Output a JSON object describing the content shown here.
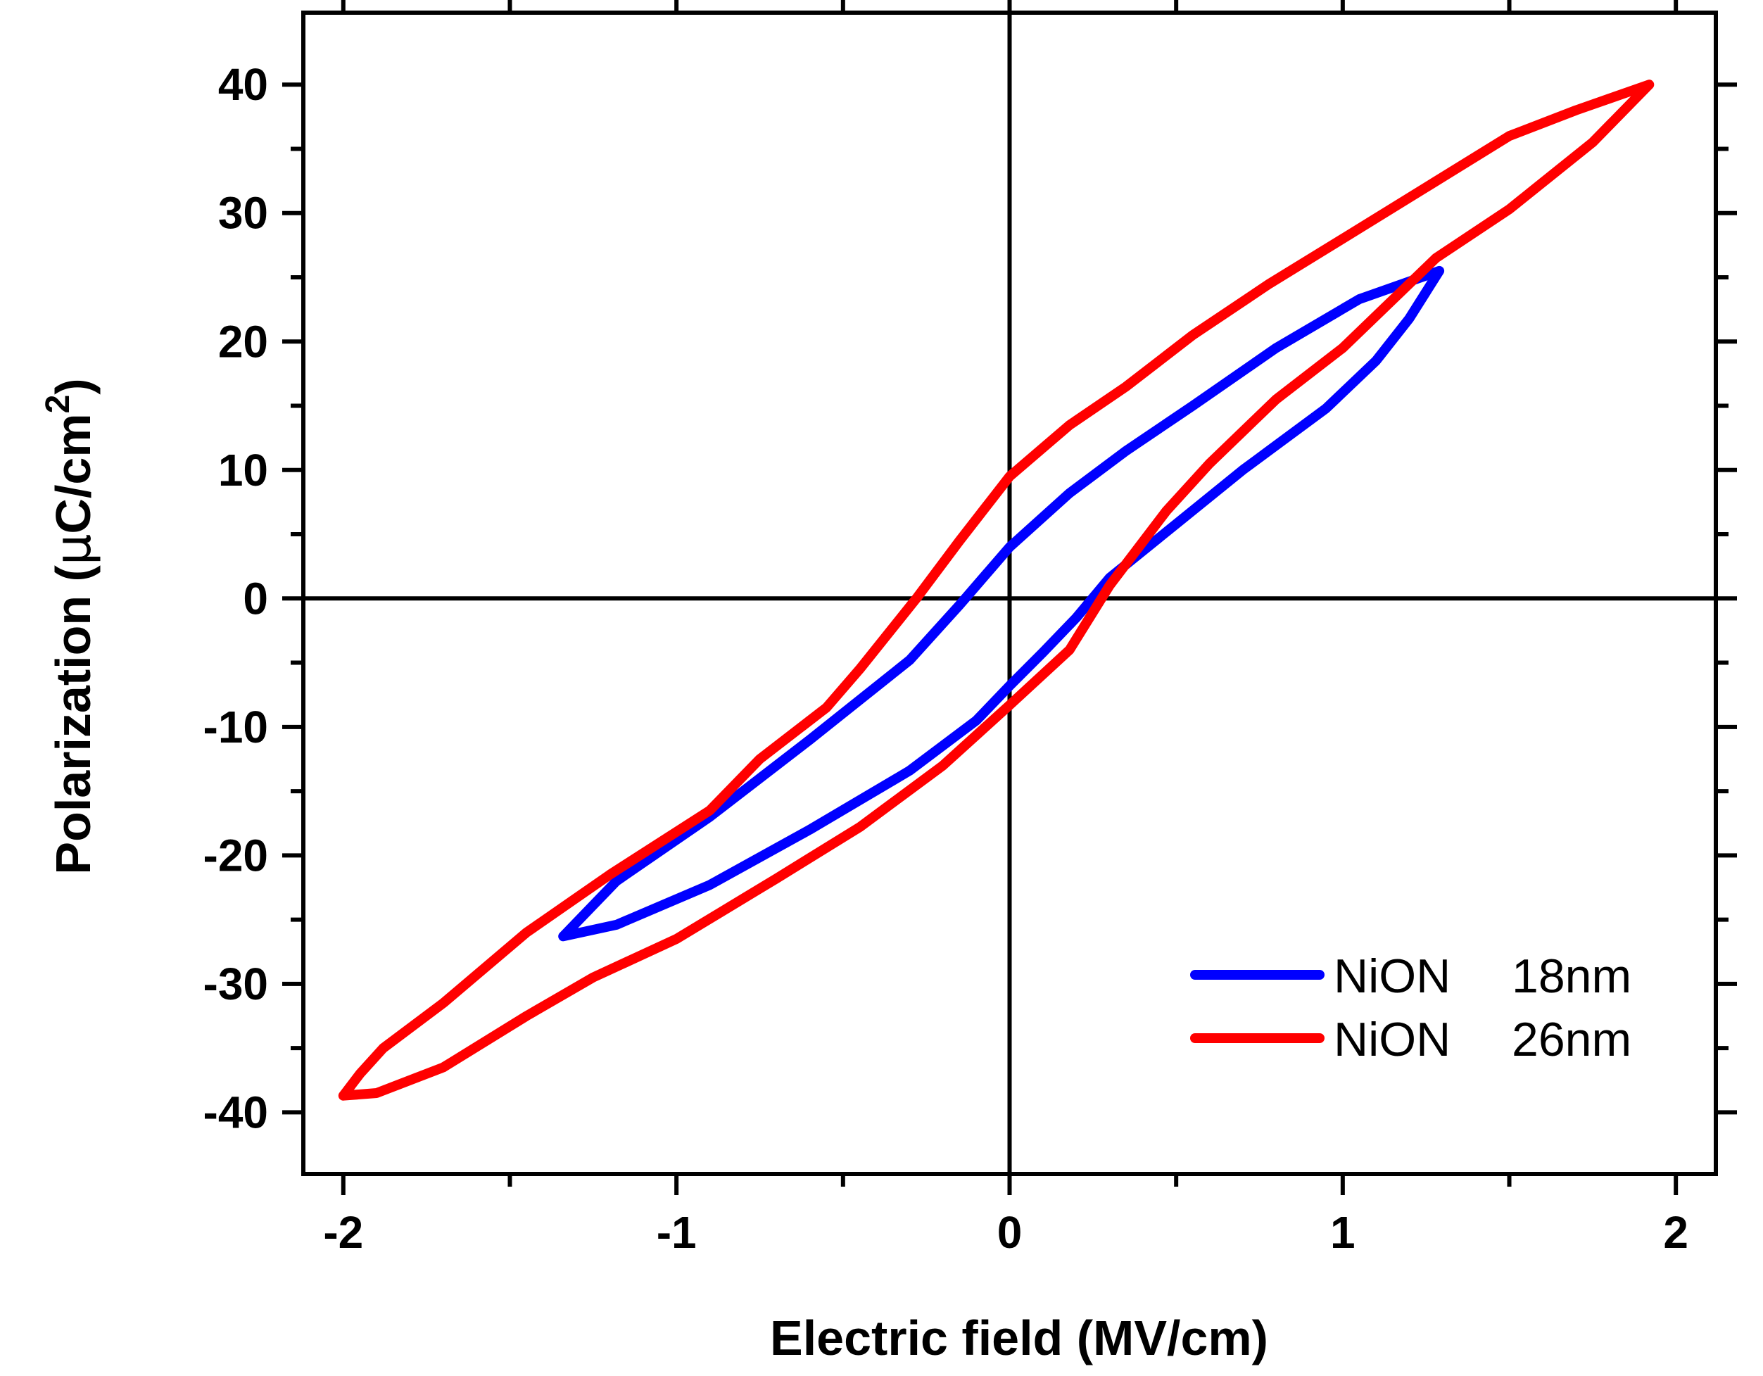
{
  "chart_data": {
    "type": "line",
    "title": "",
    "xlabel": "Electric field (MV/cm)",
    "ylabel_main": "Polarization (",
    "ylabel_mu": "μ",
    "ylabel_unit": "C/cm",
    "ylabel_sup": "2",
    "ylabel_close": ")",
    "xlim": [
      -2.12,
      2.12
    ],
    "ylim": [
      -44.8,
      45.6
    ],
    "xticks": [
      -2,
      -1,
      0,
      1,
      2
    ],
    "xtick_labels": [
      "-2",
      "-1",
      "0",
      "1",
      "2"
    ],
    "yticks": [
      -40,
      -30,
      -20,
      -10,
      0,
      10,
      20,
      30,
      40
    ],
    "ytick_labels": [
      "-40",
      "-30",
      "-20",
      "-10",
      "0",
      "10",
      "20",
      "30",
      "40"
    ],
    "zero_lines": true,
    "legend_position": "bottom-right",
    "series": [
      {
        "name": "NiON 18nm",
        "legend_material": "NiON",
        "legend_thickness": "18nm",
        "color": "#0000ff",
        "points": [
          [
            -1.34,
            -26.3
          ],
          [
            -1.18,
            -25.4
          ],
          [
            -0.9,
            -22.3
          ],
          [
            -0.6,
            -18.0
          ],
          [
            -0.3,
            -13.4
          ],
          [
            -0.1,
            -9.5
          ],
          [
            0.0,
            -6.8
          ],
          [
            0.1,
            -4.2
          ],
          [
            0.2,
            -1.5
          ],
          [
            0.3,
            1.6
          ],
          [
            0.5,
            5.8
          ],
          [
            0.7,
            10.0
          ],
          [
            0.95,
            14.8
          ],
          [
            1.1,
            18.5
          ],
          [
            1.2,
            21.8
          ],
          [
            1.29,
            25.5
          ],
          [
            1.05,
            23.3
          ],
          [
            0.8,
            19.5
          ],
          [
            0.55,
            15.0
          ],
          [
            0.35,
            11.5
          ],
          [
            0.18,
            8.2
          ],
          [
            0.0,
            4.0
          ],
          [
            -0.15,
            -0.5
          ],
          [
            -0.3,
            -4.8
          ],
          [
            -0.6,
            -11.0
          ],
          [
            -0.9,
            -17.0
          ],
          [
            -1.18,
            -22.0
          ],
          [
            -1.34,
            -26.3
          ]
        ]
      },
      {
        "name": "NiON 26nm",
        "legend_material": "NiON",
        "legend_thickness": "26nm",
        "color": "#ff0000",
        "points": [
          [
            -2.0,
            -38.7
          ],
          [
            -1.9,
            -38.5
          ],
          [
            -1.7,
            -36.5
          ],
          [
            -1.45,
            -32.5
          ],
          [
            -1.25,
            -29.5
          ],
          [
            -1.0,
            -26.5
          ],
          [
            -0.7,
            -21.8
          ],
          [
            -0.45,
            -17.8
          ],
          [
            -0.2,
            -13.0
          ],
          [
            0.0,
            -8.3
          ],
          [
            0.18,
            -4.0
          ],
          [
            0.3,
            1.0
          ],
          [
            0.47,
            6.8
          ],
          [
            0.6,
            10.5
          ],
          [
            0.8,
            15.5
          ],
          [
            1.0,
            19.5
          ],
          [
            1.28,
            26.5
          ],
          [
            1.5,
            30.3
          ],
          [
            1.75,
            35.5
          ],
          [
            1.92,
            40.0
          ],
          [
            1.7,
            38.0
          ],
          [
            1.5,
            36.0
          ],
          [
            1.25,
            32.0
          ],
          [
            1.0,
            28.0
          ],
          [
            0.78,
            24.5
          ],
          [
            0.55,
            20.5
          ],
          [
            0.35,
            16.5
          ],
          [
            0.18,
            13.5
          ],
          [
            0.0,
            9.5
          ],
          [
            -0.15,
            4.5
          ],
          [
            -0.28,
            0.0
          ],
          [
            -0.45,
            -5.5
          ],
          [
            -0.55,
            -8.5
          ],
          [
            -0.75,
            -12.5
          ],
          [
            -0.9,
            -16.5
          ],
          [
            -1.2,
            -21.5
          ],
          [
            -1.45,
            -26.0
          ],
          [
            -1.7,
            -31.5
          ],
          [
            -1.88,
            -35.0
          ],
          [
            -1.95,
            -37.0
          ],
          [
            -2.0,
            -38.7
          ]
        ]
      }
    ]
  }
}
